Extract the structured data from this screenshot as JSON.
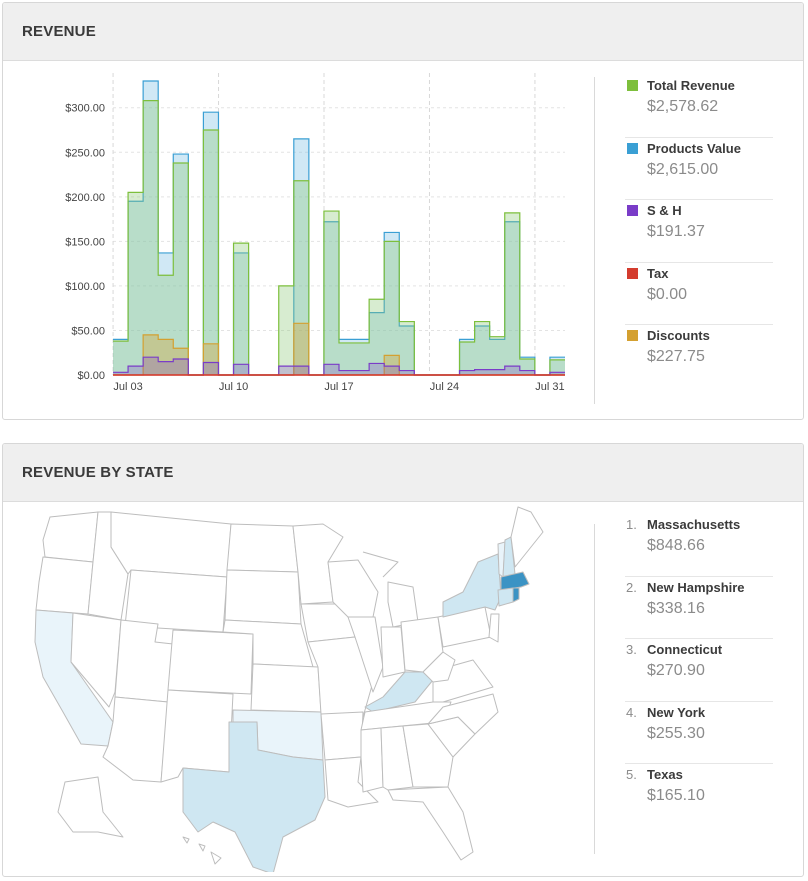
{
  "revenue_panel": {
    "title": "REVENUE",
    "legend": [
      {
        "label": "Total Revenue",
        "value": "$2,578.62",
        "color": "#7dbf3c"
      },
      {
        "label": "Products Value",
        "value": "$2,615.00",
        "color": "#3a9fd4"
      },
      {
        "label": "S & H",
        "value": "$191.37",
        "color": "#7a3cc8"
      },
      {
        "label": "Tax",
        "value": "$0.00",
        "color": "#d43c2e"
      },
      {
        "label": "Discounts",
        "value": "$227.75",
        "color": "#d4a030"
      }
    ]
  },
  "chart_data": {
    "type": "bar",
    "stacked": false,
    "grid": true,
    "ylim": [
      0,
      330
    ],
    "yticks": [
      "$0.00",
      "$50.00",
      "$100.00",
      "$150.00",
      "$200.00",
      "$250.00",
      "$300.00"
    ],
    "ytick_values": [
      0,
      50,
      100,
      150,
      200,
      250,
      300
    ],
    "xticks": [
      "Jul 03",
      "Jul 10",
      "Jul 17",
      "Jul 24",
      "Jul 31"
    ],
    "xtick_days": [
      3,
      10,
      17,
      24,
      31
    ],
    "x_days": [
      2,
      3,
      4,
      5,
      6,
      7,
      8,
      9,
      10,
      11,
      12,
      13,
      14,
      15,
      16,
      17,
      18,
      19,
      20,
      21,
      22,
      23,
      24,
      25,
      26,
      27,
      28,
      29,
      30,
      31
    ],
    "series": [
      {
        "name": "Products Value",
        "color": "#3a9fd4",
        "values": [
          40,
          195,
          330,
          137,
          248,
          0,
          295,
          0,
          137,
          0,
          0,
          0,
          265,
          0,
          172,
          40,
          40,
          70,
          160,
          55,
          0,
          0,
          0,
          40,
          55,
          40,
          172,
          20,
          0,
          20
        ]
      },
      {
        "name": "Total Revenue",
        "color": "#7dbf3c",
        "values": [
          38,
          205,
          308,
          112,
          238,
          0,
          275,
          0,
          148,
          0,
          0,
          100,
          218,
          0,
          184,
          36,
          36,
          85,
          150,
          60,
          0,
          0,
          0,
          37,
          60,
          43,
          182,
          18,
          0,
          17
        ]
      },
      {
        "name": "Discounts",
        "color": "#d4a030",
        "values": [
          0,
          0,
          45,
          40,
          30,
          0,
          35,
          0,
          0,
          0,
          0,
          0,
          58,
          0,
          0,
          0,
          0,
          0,
          22,
          0,
          0,
          0,
          0,
          0,
          0,
          0,
          0,
          0,
          0,
          0
        ]
      },
      {
        "name": "S & H",
        "color": "#7a3cc8",
        "values": [
          3,
          10,
          20,
          15,
          18,
          0,
          14,
          0,
          12,
          0,
          0,
          10,
          10,
          0,
          12,
          5,
          5,
          13,
          10,
          5,
          0,
          0,
          0,
          5,
          6,
          6,
          10,
          5,
          0,
          3
        ]
      },
      {
        "name": "Tax",
        "color": "#d43c2e",
        "values": [
          0,
          0,
          0,
          0,
          0,
          0,
          0,
          0,
          0,
          0,
          0,
          0,
          0,
          0,
          0,
          0,
          0,
          0,
          0,
          0,
          0,
          0,
          0,
          0,
          0,
          0,
          0,
          0,
          0,
          0
        ]
      }
    ]
  },
  "state_panel": {
    "title": "REVENUE BY STATE",
    "ranking": [
      {
        "rank": "1.",
        "state": "Massachusetts",
        "value": "$848.66"
      },
      {
        "rank": "2.",
        "state": "New Hampshire",
        "value": "$338.16"
      },
      {
        "rank": "3.",
        "state": "Connecticut",
        "value": "$270.90"
      },
      {
        "rank": "4.",
        "state": "New York",
        "value": "$255.30"
      },
      {
        "rank": "5.",
        "state": "Texas",
        "value": "$165.10"
      }
    ],
    "map_colors": {
      "none": "#ffffff",
      "low": "#e9f4fa",
      "mid": "#cfe7f2",
      "high": "#3b93c4",
      "border": "#bdbdbd"
    }
  }
}
